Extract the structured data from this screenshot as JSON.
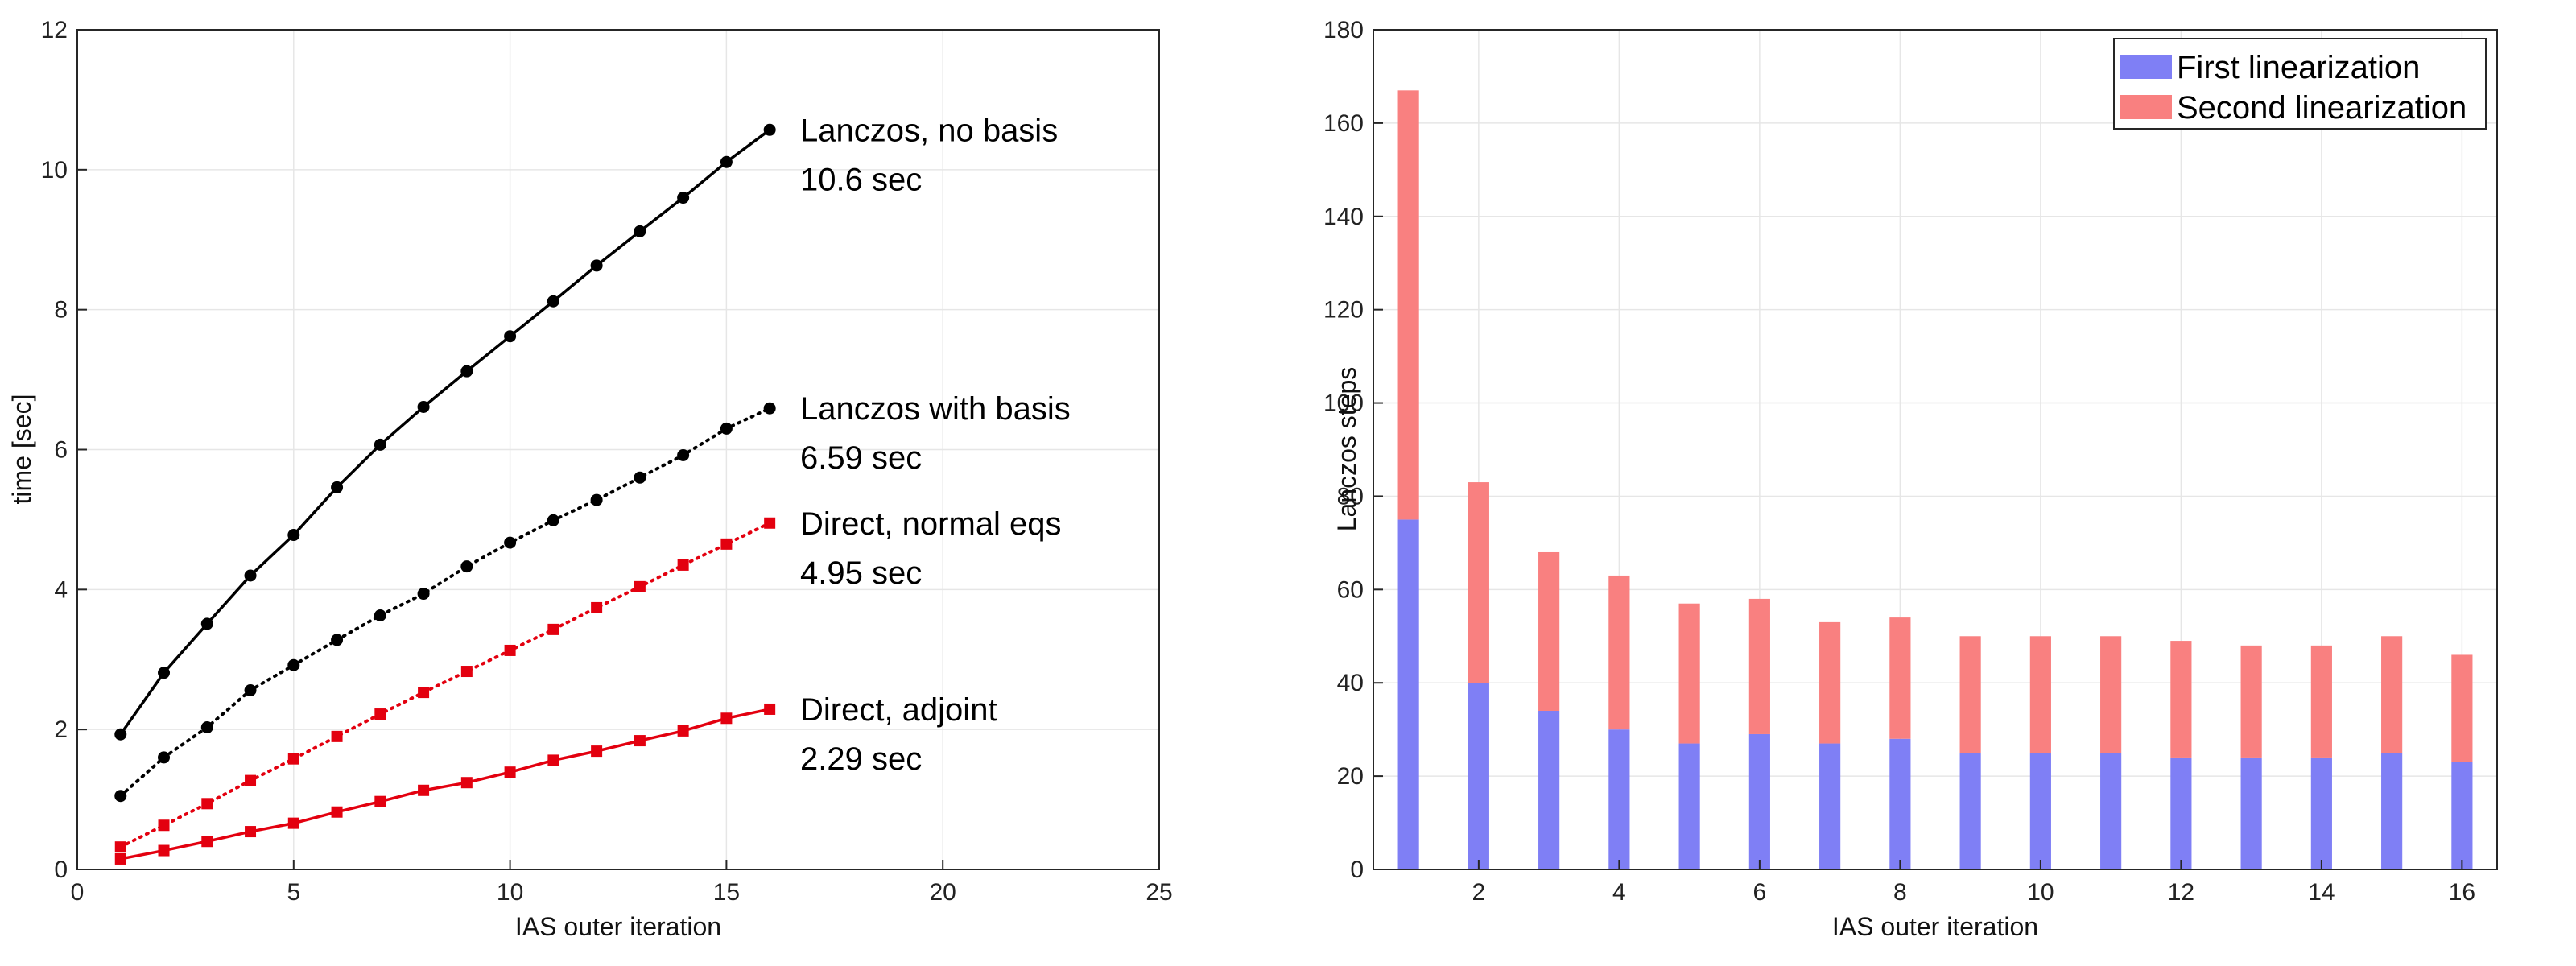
{
  "chart_data": [
    {
      "type": "line",
      "title": "",
      "xlabel": "IAS outer iteration",
      "ylabel": "time [sec]",
      "xlim": [
        0,
        25
      ],
      "ylim": [
        0,
        12
      ],
      "xticks": [
        0,
        5,
        10,
        15,
        20,
        25
      ],
      "yticks": [
        0,
        2,
        4,
        6,
        8,
        10,
        12
      ],
      "grid": true,
      "x": [
        1,
        2,
        3,
        4,
        5,
        6,
        7,
        8,
        9,
        10,
        11,
        12,
        13,
        14,
        15,
        16
      ],
      "series": [
        {
          "name": "Lanczos, no basis",
          "annotation_time": "10.6 sec",
          "color": "#000000",
          "style": "solid",
          "marker": "circle",
          "values": [
            1.93,
            2.81,
            3.51,
            4.2,
            4.78,
            5.46,
            6.07,
            6.61,
            7.12,
            7.62,
            8.12,
            8.63,
            9.12,
            9.6,
            10.11,
            10.57
          ]
        },
        {
          "name": "Lanczos with basis",
          "annotation_time": "6.59 sec",
          "color": "#000000",
          "style": "dotted",
          "marker": "circle",
          "values": [
            1.05,
            1.6,
            2.03,
            2.56,
            2.92,
            3.28,
            3.63,
            3.94,
            4.33,
            4.67,
            4.99,
            5.28,
            5.6,
            5.92,
            6.3,
            6.59
          ]
        },
        {
          "name": "Direct, normal eqs",
          "annotation_time": "4.95 sec",
          "color": "#e3000f",
          "style": "dotted",
          "marker": "square",
          "values": [
            0.32,
            0.63,
            0.94,
            1.27,
            1.58,
            1.9,
            2.22,
            2.53,
            2.83,
            3.13,
            3.43,
            3.74,
            4.04,
            4.35,
            4.65,
            4.95
          ]
        },
        {
          "name": "Direct, adjoint",
          "annotation_time": "2.29 sec",
          "color": "#e3000f",
          "style": "solid",
          "marker": "square",
          "values": [
            0.15,
            0.27,
            0.4,
            0.54,
            0.66,
            0.82,
            0.97,
            1.13,
            1.24,
            1.39,
            1.56,
            1.69,
            1.84,
            1.98,
            2.16,
            2.29
          ]
        }
      ]
    },
    {
      "type": "bar",
      "stacked": true,
      "title": "",
      "xlabel": "IAS outer iteration",
      "ylabel": "Lanczos steps",
      "xlim": [
        0.5,
        16.5
      ],
      "ylim": [
        0,
        180
      ],
      "xticks": [
        2,
        4,
        6,
        8,
        10,
        12,
        14,
        16
      ],
      "yticks": [
        0,
        20,
        40,
        60,
        80,
        100,
        120,
        140,
        160,
        180
      ],
      "grid": true,
      "legend_position": "top-right",
      "categories": [
        1,
        2,
        3,
        4,
        5,
        6,
        7,
        8,
        9,
        10,
        11,
        12,
        13,
        14,
        15,
        16
      ],
      "series": [
        {
          "name": "First linearization",
          "color": "#7f7ff5",
          "values": [
            75,
            40,
            34,
            30,
            27,
            29,
            27,
            28,
            25,
            25,
            25,
            24,
            24,
            24,
            25,
            23
          ]
        },
        {
          "name": "Second linearization",
          "color": "#f98080",
          "values": [
            92,
            43,
            34,
            33,
            30,
            29,
            26,
            26,
            25,
            25,
            25,
            25,
            24,
            24,
            25,
            23
          ]
        }
      ]
    }
  ]
}
